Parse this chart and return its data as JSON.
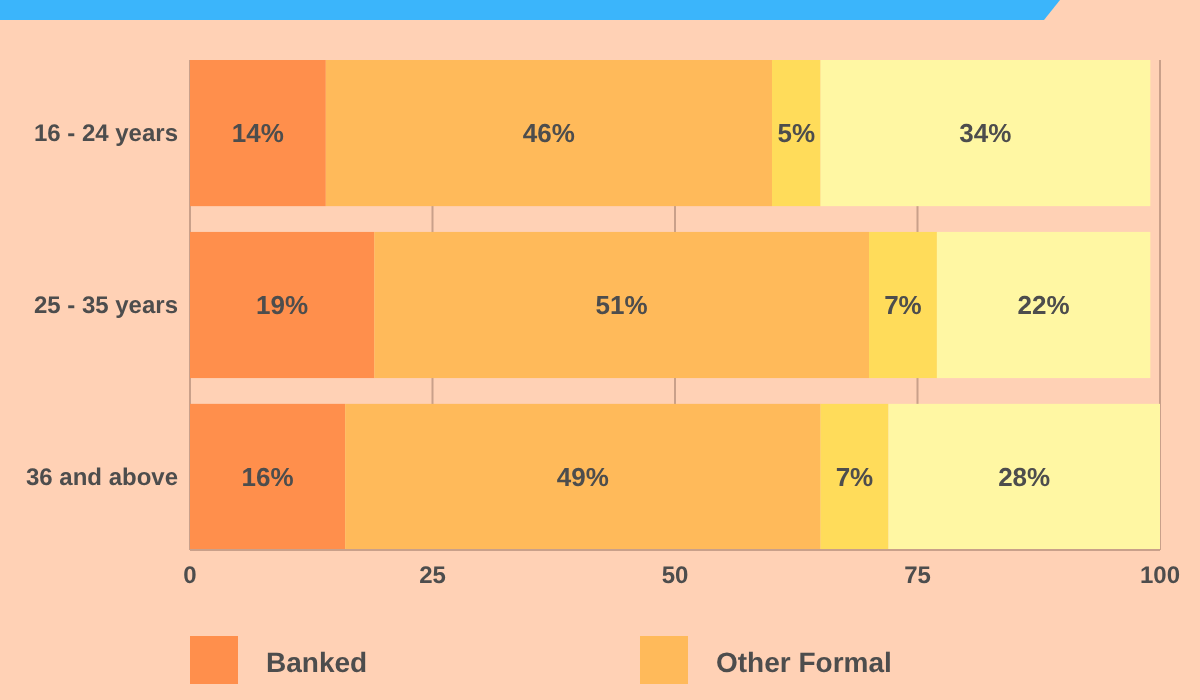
{
  "chart_data": {
    "type": "bar",
    "orientation": "horizontal",
    "stacked": true,
    "categories": [
      "16 - 24 years",
      "25 - 35 years",
      "36 and above"
    ],
    "series": [
      {
        "name": "Banked",
        "color": "#ff8f4c",
        "values": [
          14,
          19,
          16
        ],
        "value_labels": [
          "14%",
          "19%",
          "16%"
        ]
      },
      {
        "name": "Other Formal",
        "color": "#ffba5a",
        "values": [
          46,
          51,
          49
        ],
        "value_labels": [
          "46%",
          "51%",
          "49%"
        ]
      },
      {
        "color": "#ffdc5a",
        "values": [
          5,
          7,
          7
        ],
        "value_labels": [
          "5%",
          "7%",
          "7%"
        ]
      },
      {
        "color": "#fff7a3",
        "values": [
          34,
          22,
          28
        ],
        "value_labels": [
          "34%",
          "22%",
          "28%"
        ]
      }
    ],
    "xlim": [
      0,
      100
    ],
    "xticks": [
      0,
      25,
      50,
      75,
      100
    ],
    "grid": "x",
    "legend": "bottom"
  }
}
